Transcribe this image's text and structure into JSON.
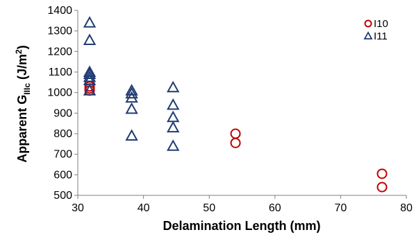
{
  "chart_data": {
    "type": "scatter",
    "title": "",
    "xlabel": "Delamination Length (mm)",
    "ylabel_parts": {
      "base": "Apparent G",
      "sub": "IIIc",
      "unit": " (J/m",
      "sup": "2",
      "close": ")"
    },
    "xlim": [
      30,
      80
    ],
    "ylim": [
      500,
      1400
    ],
    "xticks": [
      30,
      40,
      50,
      60,
      70,
      80
    ],
    "yticks": [
      500,
      600,
      700,
      800,
      900,
      1000,
      1100,
      1200,
      1300,
      1400
    ],
    "grid": false,
    "legend_position": "top-right",
    "series": [
      {
        "name": "I10",
        "marker": "circle",
        "color": "#c00000",
        "points": [
          [
            31.8,
            1030
          ],
          [
            31.8,
            1020
          ],
          [
            31.8,
            1010
          ],
          [
            54.0,
            800
          ],
          [
            54.0,
            755
          ],
          [
            76.3,
            605
          ],
          [
            76.3,
            540
          ]
        ]
      },
      {
        "name": "I11",
        "marker": "triangle",
        "color": "#1f3b73",
        "points": [
          [
            31.8,
            1340
          ],
          [
            31.8,
            1255
          ],
          [
            31.8,
            1100
          ],
          [
            31.8,
            1090
          ],
          [
            31.8,
            1075
          ],
          [
            31.8,
            1060
          ],
          [
            31.8,
            1010
          ],
          [
            38.2,
            1010
          ],
          [
            38.2,
            995
          ],
          [
            38.2,
            975
          ],
          [
            38.2,
            920
          ],
          [
            38.2,
            790
          ],
          [
            44.5,
            1025
          ],
          [
            44.5,
            940
          ],
          [
            44.5,
            880
          ],
          [
            44.5,
            830
          ],
          [
            44.5,
            740
          ]
        ]
      }
    ]
  }
}
